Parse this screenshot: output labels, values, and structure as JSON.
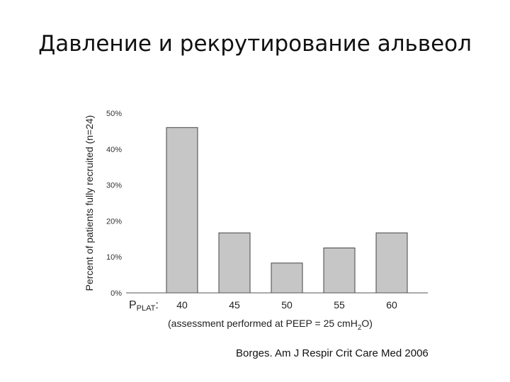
{
  "slide": {
    "title": "Давление и рекрутирование альвеол",
    "citation": "Borges. Am J Respir Crit Care Med 2006"
  },
  "chart_data": {
    "type": "bar",
    "categories": [
      "40",
      "45",
      "50",
      "55",
      "60"
    ],
    "values": [
      46,
      16.7,
      8.3,
      12.5,
      16.7
    ],
    "ylabel": "Percent of patients fully recruited (n=24)",
    "xlabel_prefix": "P",
    "xlabel_subscript": "PLAT",
    "xlabel_suffix": ":",
    "xlabel_note_pre": "(assessment performed at PEEP = 25 cmH",
    "xlabel_note_sub": "2",
    "xlabel_note_post": "O)",
    "yticks": [
      "0%",
      "10%",
      "20%",
      "30%",
      "40%",
      "50%"
    ],
    "ytick_values": [
      0,
      10,
      20,
      30,
      40,
      50
    ],
    "ylim": [
      0,
      50
    ],
    "bar_color": "#c6c6c6",
    "bar_edge_color": "#444444",
    "grid": false
  }
}
